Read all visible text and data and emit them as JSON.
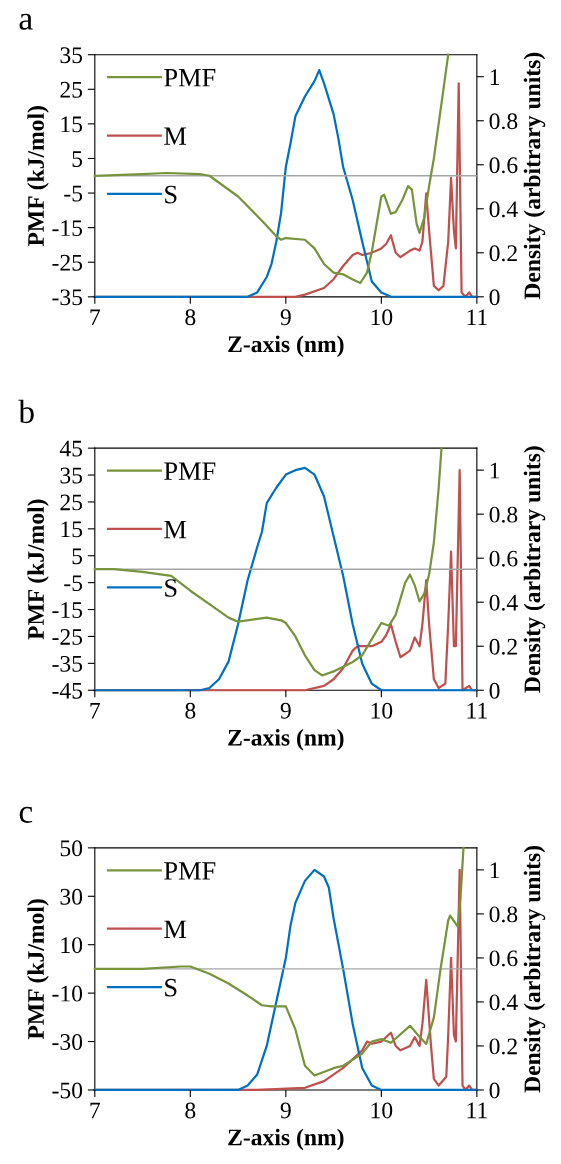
{
  "chart_data": [
    {
      "type": "line",
      "title": "a",
      "xlabel": "Z-axis (nm)",
      "ylabel": "PMF (kJ/mol)",
      "y2label": "Density (arbitrary units)",
      "xlim": [
        7,
        11
      ],
      "xticks": [
        7,
        8,
        9,
        10,
        11
      ],
      "ylim": [
        -35,
        35
      ],
      "yticks": [
        -35,
        -25,
        -15,
        -5,
        5,
        15,
        25,
        35
      ],
      "y2lim": [
        0,
        1.1
      ],
      "y2ticks": [
        0,
        0.2,
        0.4,
        0.6,
        0.8,
        1
      ],
      "legend": "top left",
      "grid": false,
      "ref_lines": [
        {
          "axis": "y",
          "value": 0,
          "color": "#a6a6a6"
        }
      ],
      "series": [
        {
          "name": "PMF",
          "color": "#77933c",
          "x": [
            7,
            7.5,
            7.75,
            8.1,
            8.2,
            8.5,
            8.75,
            8.9,
            8.95,
            9.0,
            9.2,
            9.3,
            9.4,
            9.5,
            9.6,
            9.7,
            9.78,
            9.85,
            9.9,
            9.95,
            10.0,
            10.03,
            10.1,
            10.15,
            10.22,
            10.28,
            10.32,
            10.37,
            10.4,
            10.45,
            10.5,
            10.55,
            10.6,
            10.65,
            10.7
          ],
          "values": [
            0,
            0.5,
            0.8,
            0.5,
            0,
            -6,
            -13,
            -17.5,
            -18.5,
            -18,
            -18.5,
            -21,
            -25.5,
            -28,
            -28.5,
            -30,
            -31,
            -28,
            -22,
            -14,
            -6,
            -5.5,
            -11,
            -10.5,
            -7,
            -3,
            -4,
            -14,
            -16.5,
            -12,
            -3,
            5,
            15,
            25,
            35
          ]
        },
        {
          "name": "M",
          "color": "#c0504d",
          "axis": "y2",
          "x": [
            7,
            9.1,
            9.2,
            9.4,
            9.5,
            9.6,
            9.7,
            9.75,
            9.8,
            9.9,
            10.0,
            10.05,
            10.1,
            10.15,
            10.2,
            10.3,
            10.35,
            10.4,
            10.43,
            10.47,
            10.5,
            10.55,
            10.6,
            10.65,
            10.7,
            10.73,
            10.76,
            10.78,
            10.81,
            10.84,
            10.88,
            10.92,
            10.95,
            11
          ],
          "values": [
            0,
            0,
            0.01,
            0.04,
            0.08,
            0.14,
            0.19,
            0.2,
            0.19,
            0.2,
            0.22,
            0.24,
            0.28,
            0.2,
            0.18,
            0.21,
            0.22,
            0.21,
            0.25,
            0.47,
            0.3,
            0.05,
            0.03,
            0.05,
            0.25,
            0.54,
            0.3,
            0.22,
            0.97,
            0.02,
            0,
            0.02,
            0,
            0
          ]
        },
        {
          "name": "S",
          "color": "#0070c0",
          "axis": "y2",
          "x": [
            7,
            8.6,
            8.7,
            8.8,
            8.85,
            8.9,
            8.95,
            9.0,
            9.05,
            9.1,
            9.2,
            9.3,
            9.35,
            9.4,
            9.5,
            9.55,
            9.6,
            9.7,
            9.8,
            9.9,
            10.0,
            10.1,
            11
          ],
          "values": [
            0,
            0,
            0.02,
            0.09,
            0.15,
            0.25,
            0.38,
            0.59,
            0.7,
            0.82,
            0.91,
            0.98,
            1.03,
            0.97,
            0.83,
            0.72,
            0.59,
            0.44,
            0.25,
            0.07,
            0.02,
            0,
            0
          ]
        }
      ]
    },
    {
      "type": "line",
      "title": "b",
      "xlabel": "Z-axis (nm)",
      "ylabel": "PMF (kJ/mol)",
      "y2label": "Density (arbitrary units)",
      "xlim": [
        7,
        11
      ],
      "xticks": [
        7,
        8,
        9,
        10,
        11
      ],
      "ylim": [
        -45,
        45
      ],
      "yticks": [
        -45,
        -35,
        -25,
        -15,
        -5,
        5,
        15,
        25,
        35,
        45
      ],
      "y2lim": [
        0,
        1.1
      ],
      "y2ticks": [
        0,
        0.2,
        0.4,
        0.6,
        0.8,
        1
      ],
      "legend": "top left",
      "grid": false,
      "ref_lines": [
        {
          "axis": "y",
          "value": 0,
          "color": "#a6a6a6"
        }
      ],
      "series": [
        {
          "name": "PMF",
          "color": "#77933c",
          "x": [
            7,
            7.2,
            7.5,
            7.8,
            8.0,
            8.2,
            8.4,
            8.5,
            8.8,
            8.95,
            9.0,
            9.1,
            9.2,
            9.3,
            9.38,
            9.5,
            9.7,
            9.8,
            9.9,
            10.0,
            10.08,
            10.15,
            10.25,
            10.3,
            10.35,
            10.4,
            10.45,
            10.5,
            10.55,
            10.6,
            10.63
          ],
          "values": [
            0,
            0,
            -1,
            -2.5,
            -8,
            -13,
            -18,
            -19.5,
            -18,
            -19,
            -20,
            -25,
            -32,
            -37.5,
            -39.5,
            -38,
            -34.5,
            -32,
            -26,
            -20,
            -21,
            -17,
            -5,
            -2,
            -6,
            -12,
            -9,
            -2,
            10,
            30,
            45
          ]
        },
        {
          "name": "M",
          "color": "#c0504d",
          "axis": "y2",
          "x": [
            7,
            9.2,
            9.4,
            9.5,
            9.6,
            9.7,
            9.75,
            9.8,
            9.9,
            10.0,
            10.05,
            10.1,
            10.15,
            10.2,
            10.3,
            10.35,
            10.4,
            10.43,
            10.47,
            10.5,
            10.55,
            10.6,
            10.67,
            10.7,
            10.73,
            10.76,
            10.78,
            10.82,
            10.85,
            10.92,
            10.95,
            11
          ],
          "values": [
            0,
            0,
            0.02,
            0.05,
            0.1,
            0.18,
            0.2,
            0.2,
            0.2,
            0.22,
            0.25,
            0.3,
            0.22,
            0.15,
            0.18,
            0.24,
            0.2,
            0.3,
            0.5,
            0.3,
            0.05,
            0.01,
            0.03,
            0.3,
            0.63,
            0.2,
            0.2,
            1.0,
            0,
            0.02,
            0,
            0
          ]
        },
        {
          "name": "S",
          "color": "#0070c0",
          "axis": "y2",
          "x": [
            7,
            8.1,
            8.2,
            8.3,
            8.4,
            8.5,
            8.6,
            8.7,
            8.75,
            8.8,
            8.9,
            9.0,
            9.1,
            9.2,
            9.3,
            9.4,
            9.5,
            9.6,
            9.7,
            9.8,
            9.9,
            10.0,
            11
          ],
          "values": [
            0,
            0,
            0.01,
            0.05,
            0.13,
            0.3,
            0.5,
            0.65,
            0.72,
            0.85,
            0.92,
            0.98,
            1.0,
            1.01,
            0.98,
            0.88,
            0.7,
            0.52,
            0.3,
            0.12,
            0.03,
            0,
            0
          ]
        }
      ]
    },
    {
      "type": "line",
      "title": "c",
      "xlabel": "Z-axis (nm)",
      "ylabel": "PMF (kJ/mol)",
      "y2label": "Density (arbitrary units)",
      "xlim": [
        7,
        11
      ],
      "xticks": [
        7,
        8,
        9,
        10,
        11
      ],
      "ylim": [
        -50,
        50
      ],
      "yticks": [
        -50,
        -30,
        -10,
        10,
        30,
        50
      ],
      "y2lim": [
        0,
        1.1
      ],
      "y2ticks": [
        0,
        0.2,
        0.4,
        0.6,
        0.8,
        1
      ],
      "legend": "top left",
      "grid": false,
      "ref_lines": [
        {
          "axis": "y",
          "value": 0,
          "color": "#a6a6a6"
        }
      ],
      "series": [
        {
          "name": "PMF",
          "color": "#77933c",
          "x": [
            7,
            7.5,
            7.9,
            8.0,
            8.2,
            8.4,
            8.6,
            8.75,
            8.85,
            9.0,
            9.1,
            9.2,
            9.3,
            9.5,
            9.6,
            9.8,
            9.9,
            10.0,
            10.1,
            10.3,
            10.4,
            10.47,
            10.55,
            10.62,
            10.7,
            10.72,
            10.8,
            10.83,
            10.86
          ],
          "values": [
            0,
            0,
            1,
            1,
            -2,
            -6,
            -11,
            -15,
            -15.5,
            -15.5,
            -25,
            -40,
            -44,
            -41,
            -40,
            -35,
            -30,
            -29,
            -30.5,
            -23.5,
            -28,
            -31,
            -20,
            0,
            20,
            22,
            17.5,
            30,
            50
          ]
        },
        {
          "name": "M",
          "color": "#c0504d",
          "axis": "y2",
          "x": [
            7,
            8.7,
            9.2,
            9.4,
            9.6,
            9.8,
            9.85,
            9.9,
            10.0,
            10.1,
            10.15,
            10.2,
            10.3,
            10.35,
            10.4,
            10.43,
            10.47,
            10.52,
            10.55,
            10.6,
            10.68,
            10.7,
            10.73,
            10.76,
            10.78,
            10.82,
            10.85,
            10.88,
            10.92,
            10.95,
            11
          ],
          "values": [
            0,
            0,
            0.01,
            0.04,
            0.1,
            0.18,
            0.22,
            0.21,
            0.22,
            0.26,
            0.2,
            0.18,
            0.2,
            0.24,
            0.2,
            0.3,
            0.5,
            0.2,
            0.05,
            0.02,
            0.06,
            0.25,
            0.6,
            0.25,
            0.22,
            1.0,
            0.02,
            0,
            0.02,
            0,
            0
          ]
        },
        {
          "name": "S",
          "color": "#0070c0",
          "axis": "y2",
          "x": [
            7,
            8.5,
            8.6,
            8.7,
            8.8,
            8.9,
            8.95,
            9.0,
            9.05,
            9.1,
            9.2,
            9.3,
            9.4,
            9.45,
            9.5,
            9.6,
            9.7,
            9.75,
            9.8,
            9.9,
            10.0,
            11
          ],
          "values": [
            0,
            0,
            0.02,
            0.07,
            0.2,
            0.4,
            0.5,
            0.6,
            0.75,
            0.85,
            0.95,
            1.0,
            0.97,
            0.92,
            0.78,
            0.55,
            0.3,
            0.2,
            0.1,
            0.02,
            0,
            0
          ]
        }
      ]
    }
  ]
}
